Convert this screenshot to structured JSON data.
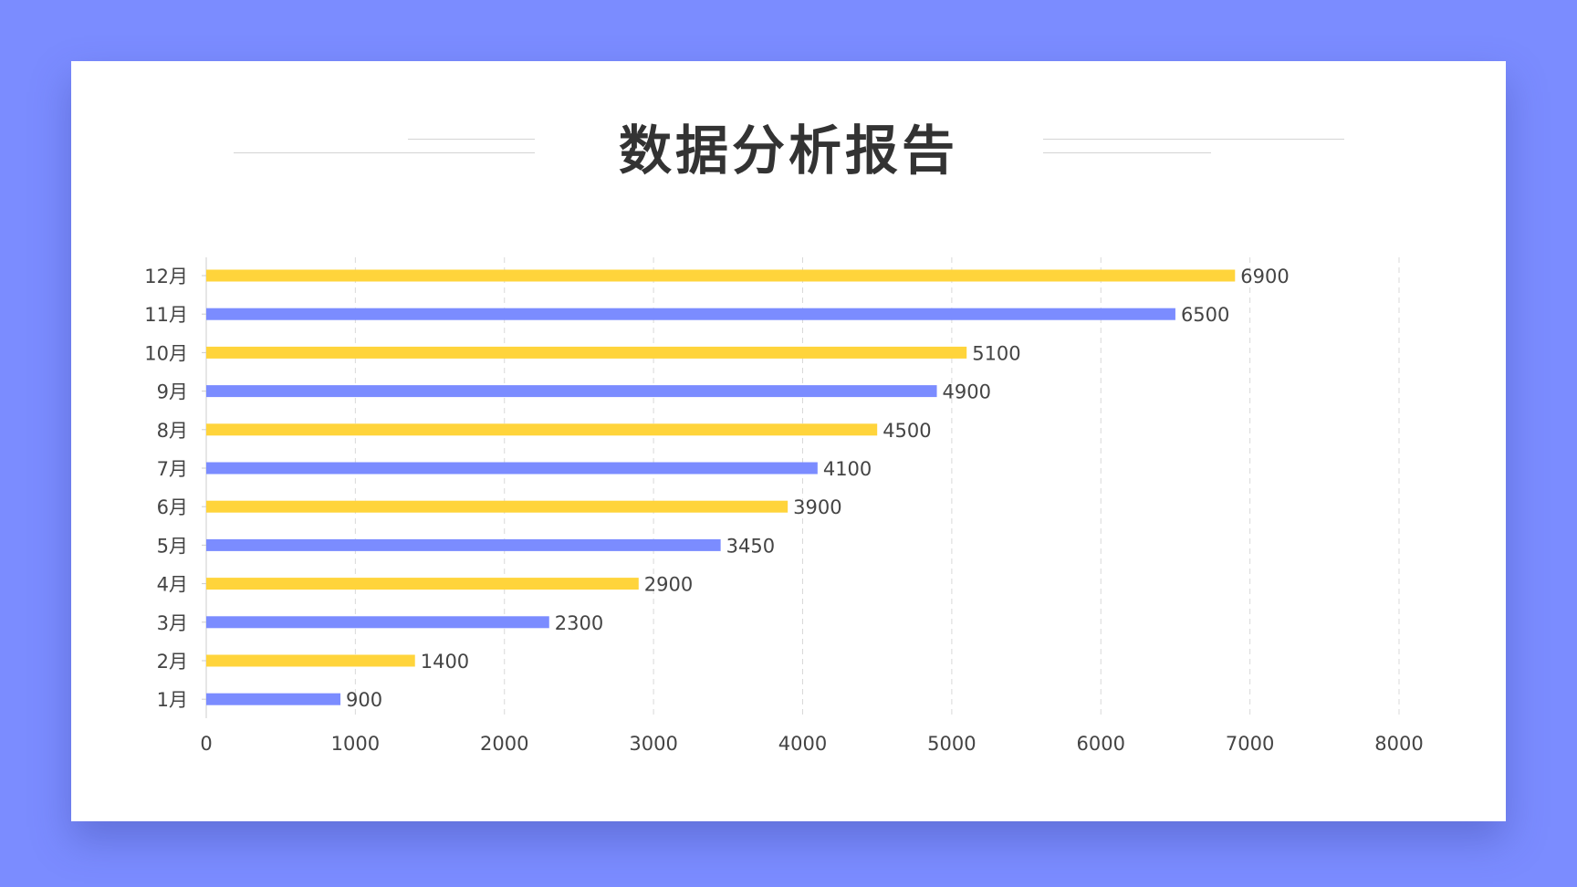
{
  "title": "数据分析报告",
  "colors": {
    "background": "#7b8cff",
    "bar_yellow": "#ffd43b",
    "bar_blue": "#7b8cff",
    "grid": "#d9d9d9",
    "text": "#444444"
  },
  "chart_data": {
    "type": "bar",
    "orientation": "horizontal",
    "title": "数据分析报告",
    "categories": [
      "1月",
      "2月",
      "3月",
      "4月",
      "5月",
      "6月",
      "7月",
      "8月",
      "9月",
      "10月",
      "11月",
      "12月"
    ],
    "values": [
      900,
      1400,
      2300,
      2900,
      3450,
      3900,
      4100,
      4500,
      4900,
      5100,
      6500,
      6900
    ],
    "bar_colors": [
      "#7b8cff",
      "#ffd43b",
      "#7b8cff",
      "#ffd43b",
      "#7b8cff",
      "#ffd43b",
      "#7b8cff",
      "#ffd43b",
      "#7b8cff",
      "#ffd43b",
      "#7b8cff",
      "#ffd43b"
    ],
    "xlim": [
      0,
      8000
    ],
    "xticks": [
      0,
      1000,
      2000,
      3000,
      4000,
      5000,
      6000,
      7000,
      8000
    ],
    "grid": "vertical dashed",
    "data_labels": true,
    "legend": "none"
  }
}
